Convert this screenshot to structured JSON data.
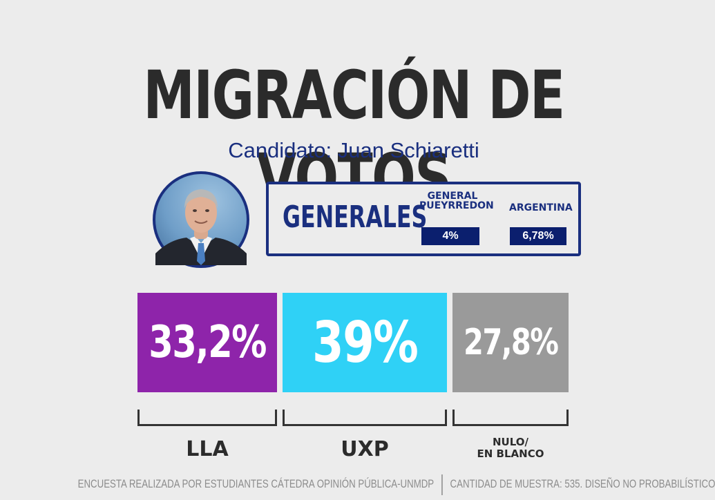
{
  "title": "MIGRACIÓN DE VOTOS",
  "subtitle": "Candidato: Juan Schiaretti",
  "generales": {
    "label": "GENERALES",
    "regions": [
      {
        "name": "GENERAL\nPUEYRREDON",
        "value": "4%"
      },
      {
        "name": "ARGENTINA",
        "value": "6,78%"
      }
    ]
  },
  "chart_data": {
    "type": "bar",
    "categories": [
      "LLA",
      "UXP",
      "NULO/\nEN BLANCO"
    ],
    "values": [
      33.2,
      39,
      27.8
    ],
    "value_labels": [
      "33,2%",
      "39%",
      "27,8%"
    ],
    "colors": [
      "#8e24aa",
      "#2fd1f6",
      "#9a9a9a"
    ],
    "title": "MIGRACIÓN DE VOTOS",
    "subtitle": "Candidato: Juan Schiaretti",
    "ylim": [
      0,
      100
    ],
    "grid": false
  },
  "footer": {
    "left": "ENCUESTA REALIZADA POR ESTUDIANTES CÁTEDRA OPINIÓN PÚBLICA-UNMDP",
    "right": "CANTIDAD DE MUESTRA: 535. DISEÑO NO PROBABILÍSTICO"
  }
}
